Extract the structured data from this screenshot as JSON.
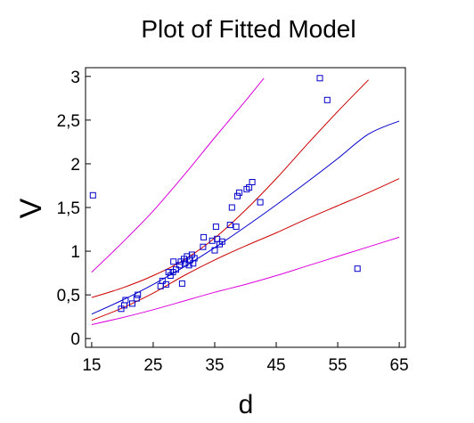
{
  "chart_data": {
    "type": "scatter",
    "title": "Plot of Fitted Model",
    "xlabel": "d",
    "ylabel": "V",
    "xlim": [
      14,
      66
    ],
    "ylim": [
      -0.1,
      3.1
    ],
    "xticks": [
      15,
      25,
      35,
      45,
      55,
      65
    ],
    "yticks": [
      0,
      0.5,
      1,
      1.5,
      2,
      2.5,
      3
    ],
    "xtick_labels": [
      "15",
      "25",
      "35",
      "45",
      "55",
      "65"
    ],
    "ytick_labels": [
      "0",
      "0,5",
      "1",
      "1,5",
      "2",
      "2,5",
      "3"
    ],
    "grid": false,
    "legend": "none",
    "points": {
      "x": [
        15.2,
        19.8,
        20.3,
        20.5,
        21.6,
        22.3,
        22.5,
        26.2,
        26.5,
        27.1,
        27.5,
        27.8,
        28.2,
        28.3,
        28.7,
        29.3,
        29.5,
        29.7,
        30.0,
        30.2,
        30.5,
        30.8,
        31.0,
        31.3,
        31.5,
        31.7,
        33.1,
        33.2,
        34.6,
        35.0,
        35.2,
        35.4,
        35.8,
        36.2,
        37.5,
        37.8,
        38.5,
        38.7,
        39.0,
        40.2,
        40.6,
        41.1,
        42.4,
        52.1,
        53.3,
        58.2
      ],
      "y": [
        1.64,
        0.34,
        0.38,
        0.44,
        0.4,
        0.46,
        0.5,
        0.6,
        0.66,
        0.62,
        0.76,
        0.72,
        0.76,
        0.88,
        0.79,
        0.84,
        0.88,
        0.63,
        0.91,
        0.86,
        0.94,
        0.84,
        0.9,
        0.96,
        0.86,
        0.92,
        1.05,
        1.16,
        1.12,
        1.01,
        1.28,
        1.14,
        1.08,
        1.11,
        1.3,
        1.5,
        1.28,
        1.63,
        1.67,
        1.71,
        1.73,
        1.79,
        1.56,
        2.98,
        2.73,
        0.8
      ]
    },
    "series": [
      {
        "role": "fitted",
        "color": "#0000cc",
        "x": [
          15,
          20,
          25,
          30,
          35,
          40,
          45,
          50,
          55,
          60,
          65
        ],
        "y": [
          0.28,
          0.44,
          0.62,
          0.82,
          1.04,
          1.28,
          1.53,
          1.79,
          2.06,
          2.34,
          2.49
        ]
      },
      {
        "role": "confidence-upper",
        "color": "#cc0000",
        "x": [
          15,
          20,
          25,
          30,
          35,
          40,
          45,
          50,
          55,
          60
        ],
        "y": [
          0.47,
          0.58,
          0.72,
          0.9,
          1.15,
          1.47,
          1.83,
          2.22,
          2.6,
          2.96
        ]
      },
      {
        "role": "confidence-lower",
        "color": "#cc0000",
        "x": [
          15,
          20,
          25,
          30,
          35,
          40,
          45,
          50,
          55,
          60,
          65
        ],
        "y": [
          0.21,
          0.35,
          0.52,
          0.72,
          0.9,
          1.06,
          1.21,
          1.37,
          1.52,
          1.67,
          1.83
        ]
      },
      {
        "role": "prediction-upper",
        "color": "#dd00dd",
        "x": [
          15,
          20,
          25,
          30,
          35,
          40,
          43
        ],
        "y": [
          0.76,
          1.1,
          1.46,
          1.87,
          2.3,
          2.72,
          2.98
        ]
      },
      {
        "role": "prediction-lower",
        "color": "#dd00dd",
        "x": [
          15,
          20,
          25,
          30,
          35,
          40,
          45,
          50,
          55,
          60,
          65
        ],
        "y": [
          0.16,
          0.24,
          0.33,
          0.43,
          0.53,
          0.62,
          0.72,
          0.83,
          0.94,
          1.05,
          1.16
        ]
      }
    ],
    "marker_color": "#0000cc",
    "marker": "open-square"
  }
}
